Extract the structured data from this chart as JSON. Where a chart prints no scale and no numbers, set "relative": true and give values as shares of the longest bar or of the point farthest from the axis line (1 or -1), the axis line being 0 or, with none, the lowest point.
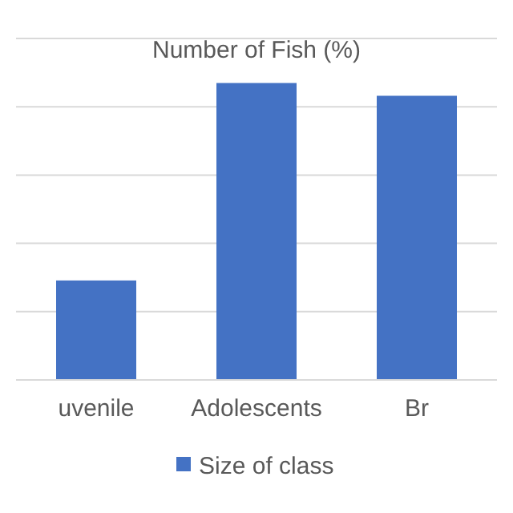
{
  "chart_data": {
    "type": "bar",
    "title": "Number of Fish (%)",
    "categories": [
      "uvenile",
      "Adolescents",
      "Br"
    ],
    "series": [
      {
        "name": "Size of class",
        "color": "#4472c4",
        "values": [
          0.335,
          1,
          0.957
        ]
      }
    ],
    "relative": true,
    "grid": "y",
    "legend": "bottom"
  }
}
